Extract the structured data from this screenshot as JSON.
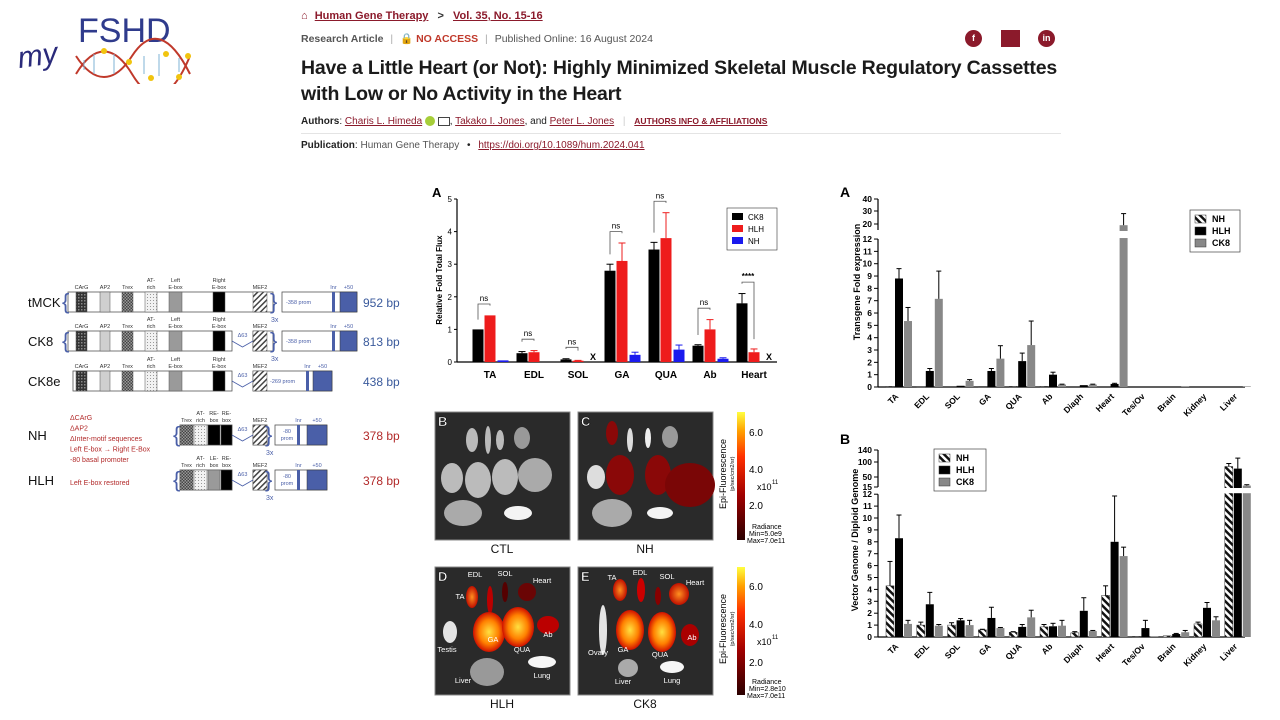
{
  "logo": {
    "text_my": "my",
    "text_brand": "FSHD"
  },
  "breadcrumb": {
    "home_icon": "home-icon",
    "journal": "Human Gene Therapy",
    "separator": ">",
    "issue": "Vol. 35, No. 15-16"
  },
  "article_meta": {
    "type": "Research Article",
    "access": "NO ACCESS",
    "published": "Published Online: 16 August 2024"
  },
  "share": {
    "facebook": "f",
    "twitter": "",
    "linkedin": "in"
  },
  "title_line1": "Have a Little Heart (or Not): Highly Minimized Skeletal Muscle Regulatory Cassettes",
  "title_line2": "with Low or No Activity in the Heart",
  "authors": {
    "label": "Authors",
    "list": [
      "Charis L. Himeda",
      "Takako I. Jones",
      "Peter L. Jones"
    ],
    "and": ", and",
    "info_link": "AUTHORS INFO & AFFILIATIONS"
  },
  "publication": {
    "label": "Publication",
    "journal": "Human Gene Therapy",
    "doi": "https://doi.org/10.1089/hum.2024.041"
  },
  "constructs": [
    {
      "name": "tMCK",
      "bp": "952 bp",
      "bp_color": "#3a5a9c",
      "elements": [
        [
          "CArG"
        ],
        [
          "AP2"
        ],
        [
          "Trex"
        ],
        [
          "AT-",
          "rich"
        ],
        [
          "Left",
          "E-box"
        ],
        [
          "Right",
          "E-box"
        ],
        [
          "MEF2"
        ]
      ],
      "prom": [
        "-358 prom"
      ],
      "inr": "Inr",
      "plus50": "+50",
      "repeat": "3x",
      "delta": "",
      "notes": []
    },
    {
      "name": "CK8",
      "bp": "813 bp",
      "bp_color": "#3a5a9c",
      "elements": [
        [
          "CArG"
        ],
        [
          "AP2"
        ],
        [
          "Trex"
        ],
        [
          "AT-",
          "rich"
        ],
        [
          "Left",
          "E-box"
        ],
        [
          "Right",
          "E-box"
        ],
        [
          "MEF2"
        ]
      ],
      "prom": [
        "-358 prom"
      ],
      "inr": "Inr",
      "plus50": "+50",
      "repeat": "3x",
      "delta": "Δ63",
      "notes": []
    },
    {
      "name": "CK8e",
      "bp": "438 bp",
      "bp_color": "#3a5a9c",
      "elements": [
        [
          "CArG"
        ],
        [
          "AP2"
        ],
        [
          "Trex"
        ],
        [
          "AT-",
          "rich"
        ],
        [
          "Left",
          "E-box"
        ],
        [
          "Right",
          "E-box"
        ],
        [
          "MEF2"
        ]
      ],
      "prom": [
        "-269 prom"
      ],
      "inr": "Inr",
      "plus50": "+50",
      "repeat": "",
      "delta": "Δ63",
      "notes": []
    },
    {
      "name": "NH",
      "bp": "378 bp",
      "bp_color": "#b22a2a",
      "elements": [
        [
          "Trex"
        ],
        [
          "AT-",
          "rich"
        ],
        [
          "RE-",
          "box"
        ],
        [
          "RE-",
          "box"
        ],
        [
          "MEF2"
        ]
      ],
      "prom": [
        "-80",
        "prom"
      ],
      "inr": "Inr",
      "plus50": "+50",
      "repeat": "3x",
      "delta": "Δ63",
      "notes": [
        "ΔCArG",
        "ΔAP2",
        "ΔInter-motif sequences",
        "Left E-box → Right E-Box",
        "-80 basal promoter"
      ]
    },
    {
      "name": "HLH",
      "bp": "378 bp",
      "bp_color": "#b22a2a",
      "elements": [
        [
          "Trex"
        ],
        [
          "AT-",
          "rich"
        ],
        [
          "LE-",
          "box"
        ],
        [
          "RE-",
          "box"
        ],
        [
          "MEF2"
        ]
      ],
      "prom": [
        "-80",
        "prom"
      ],
      "inr": "Inr",
      "plus50": "+50",
      "repeat": "3x",
      "delta": "Δ63",
      "notes": [
        "Left E-box restored"
      ]
    }
  ],
  "imaging": {
    "panels": [
      {
        "letter": "B",
        "caption": "CTL",
        "tissues": []
      },
      {
        "letter": "C",
        "caption": "NH",
        "tissues": []
      },
      {
        "letter": "D",
        "caption": "HLH",
        "tissues": [
          "EDL",
          "SOL",
          "Heart",
          "TA",
          "Testis",
          "GA",
          "QUA",
          "Ab",
          "Liver",
          "Lung"
        ]
      },
      {
        "letter": "E",
        "caption": "CK8",
        "tissues": [
          "TA",
          "EDL",
          "SOL",
          "Heart",
          "Ovary",
          "GA",
          "QUA",
          "Ab",
          "Liver",
          "Lung"
        ]
      }
    ],
    "colorbars": [
      {
        "title": "Epi-Fluorescence",
        "unit": "(p/sec/cm2/sr)",
        "ticks": [
          "6.0",
          "4.0",
          "2.0"
        ],
        "scale": "x10",
        "scale_exp": "11",
        "radiance": "Radiance",
        "min": "Min=5.0e9",
        "max": "Max=7.0e11"
      },
      {
        "title": "Epi-Fluorescence",
        "unit": "(p/sec/cm2/sr)",
        "ticks": [
          "6.0",
          "4.0",
          "2.0"
        ],
        "scale": "x10",
        "scale_exp": "11",
        "radiance": "Radiance",
        "min": "Min=2.8e10",
        "max": "Max=7.0e11"
      }
    ]
  },
  "chart_data": [
    {
      "panel": "A",
      "type": "bar",
      "ylabel": "Relative Fold Total Flux",
      "ylim": [
        0,
        5
      ],
      "yticks": [
        "0",
        "1",
        "2",
        "3",
        "4",
        "5"
      ],
      "categories": [
        "TA",
        "EDL",
        "SOL",
        "GA",
        "QUA",
        "Ab",
        "Heart"
      ],
      "legend_position": "top-right",
      "series": [
        {
          "name": "CK8",
          "color": "#000000",
          "values": [
            1.0,
            0.27,
            0.08,
            2.8,
            3.45,
            0.5,
            1.8
          ],
          "errors": [
            0,
            0.05,
            0.02,
            0.2,
            0.22,
            0.03,
            0.3
          ]
        },
        {
          "name": "HLH",
          "color": "#ee1c1c",
          "values": [
            1.43,
            0.3,
            0.04,
            3.1,
            3.8,
            1.0,
            0.3
          ],
          "errors": [
            0,
            0.05,
            0.01,
            0.55,
            0.78,
            0.3,
            0.1
          ]
        },
        {
          "name": "NH",
          "color": "#1a1aee",
          "values": [
            0.05,
            0,
            null,
            0.22,
            0.38,
            0.1,
            null
          ],
          "errors": [
            0,
            0,
            0,
            0.08,
            0.14,
            0.03,
            0
          ]
        }
      ],
      "not_detected_mark": "X",
      "significance": [
        "ns",
        "ns",
        "ns",
        "ns",
        "ns",
        "ns",
        "****"
      ]
    },
    {
      "panel": "A",
      "type": "bar",
      "ylabel": "Transgene  Fold expression",
      "yticks": [
        "0",
        "1",
        "2",
        "3",
        "4",
        "5",
        "6",
        "7",
        "8",
        "9",
        "10",
        "11",
        "12",
        "20",
        "30",
        "40"
      ],
      "ylim": [
        0,
        40
      ],
      "axis_break": [
        12,
        15
      ],
      "categories": [
        "TA",
        "EDL",
        "SOL",
        "GA",
        "QUA",
        "Ab",
        "Diaph",
        "Heart",
        "Tes/Ov",
        "Brain",
        "Kidney",
        "Liver"
      ],
      "legend_position": "top-right",
      "series": [
        {
          "name": "NH",
          "pattern": "hatched",
          "values": [
            0.05,
            0.03,
            0,
            0.04,
            0.05,
            0.05,
            0,
            0,
            0,
            0,
            0,
            0
          ],
          "errors": [
            0,
            0,
            0,
            0,
            0,
            0,
            0,
            0,
            0,
            0,
            0,
            0
          ]
        },
        {
          "name": "HLH",
          "color": "#000000",
          "values": [
            8.8,
            1.3,
            0.1,
            1.3,
            2.1,
            1.0,
            0.15,
            0.25,
            0,
            0,
            0,
            0
          ],
          "errors": [
            0.8,
            0.2,
            0,
            0.2,
            0.65,
            0.2,
            0,
            0.05,
            0,
            0,
            0,
            0
          ]
        },
        {
          "name": "CK8",
          "color": "#888888",
          "values": [
            5.35,
            7.15,
            0.5,
            2.3,
            3.4,
            0.2,
            0.2,
            19,
            0,
            0.05,
            0,
            0.05
          ],
          "errors": [
            1.1,
            2.25,
            0.1,
            1.05,
            1.95,
            0.03,
            0.03,
            9,
            0,
            0,
            0,
            0
          ]
        }
      ]
    },
    {
      "panel": "B",
      "type": "bar",
      "ylabel": "Vector Genome / Diploid Genome",
      "yticks": [
        "0",
        "1",
        "2",
        "3",
        "4",
        "5",
        "6",
        "7",
        "8",
        "9",
        "10",
        "11",
        "12",
        "15",
        "50",
        "100",
        "140"
      ],
      "ylim": [
        0,
        140
      ],
      "axis_break": [
        12,
        15
      ],
      "categories": [
        "TA",
        "EDL",
        "SOL",
        "GA",
        "QUA",
        "Ab",
        "Diaph",
        "Heart",
        "Tes/Ov",
        "Brain",
        "Kidney",
        "Liver"
      ],
      "legend_position": "top-left",
      "series": [
        {
          "name": "NH",
          "pattern": "hatched",
          "values": [
            4.3,
            1.0,
            1.0,
            0.6,
            0.4,
            0.85,
            0.35,
            3.5,
            0.05,
            0.1,
            1.1,
            85
          ],
          "errors": [
            2.05,
            0.25,
            0.2,
            0.05,
            0.05,
            0.2,
            0.1,
            0.8,
            0,
            0,
            0.15,
            10
          ]
        },
        {
          "name": "HLH",
          "color": "#000000",
          "values": [
            8.3,
            2.75,
            1.4,
            1.6,
            0.85,
            0.9,
            2.2,
            8.0,
            0.75,
            0.25,
            2.45,
            78
          ],
          "errors": [
            1.95,
            1.0,
            0.15,
            0.9,
            0.2,
            0.25,
            1.1,
            3.85,
            0.65,
            0.05,
            0.45,
            35
          ]
        },
        {
          "name": "CK8",
          "color": "#888888",
          "values": [
            1.1,
            0.95,
            1.0,
            0.75,
            1.65,
            0.95,
            0.5,
            6.8,
            0.05,
            0.4,
            1.4,
            20
          ],
          "errors": [
            0.3,
            0.1,
            0.4,
            0.05,
            0.6,
            0.45,
            0.05,
            0.75,
            0,
            0.15,
            0.3,
            3
          ]
        }
      ]
    }
  ]
}
